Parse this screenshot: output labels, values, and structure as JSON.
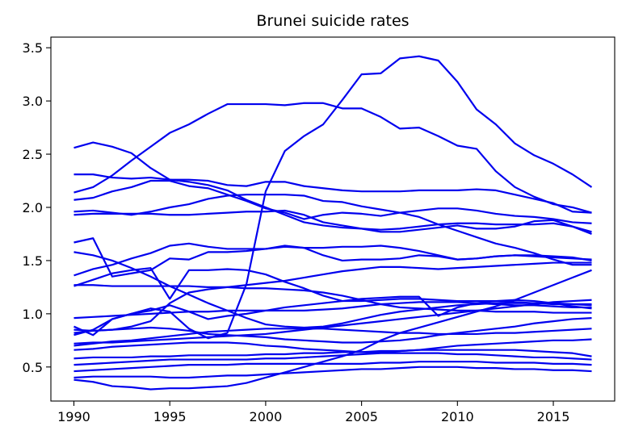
{
  "chart_data": {
    "type": "line",
    "title": "Brunei suicide rates",
    "xlabel": "",
    "ylabel": "",
    "xlim": [
      1988.8,
      2018.2
    ],
    "ylim": [
      0.18,
      3.6
    ],
    "xticks": [
      1990,
      1995,
      2000,
      2005,
      2010,
      2015
    ],
    "yticks": [
      0.5,
      1.0,
      1.5,
      2.0,
      2.5,
      3.0,
      3.5
    ],
    "grid": false,
    "line_color": "#0000ee",
    "x": [
      1990,
      1991,
      1992,
      1993,
      1994,
      1995,
      1996,
      1997,
      1998,
      1999,
      2000,
      2001,
      2002,
      2003,
      2004,
      2005,
      2006,
      2007,
      2008,
      2009,
      2010,
      2011,
      2012,
      2013,
      2014,
      2015,
      2016,
      2017
    ],
    "series": [
      {
        "values": [
          0.38,
          0.36,
          0.32,
          0.31,
          0.29,
          0.3,
          0.3,
          0.31,
          0.32,
          0.35,
          0.4,
          0.45,
          0.5,
          0.55,
          0.6,
          0.66,
          0.75,
          0.82,
          0.87,
          0.92,
          0.97,
          1.02,
          1.07,
          1.13,
          1.2,
          1.27,
          1.34,
          1.41
        ]
      },
      {
        "values": [
          0.4,
          0.41,
          0.41,
          0.41,
          0.41,
          0.4,
          0.4,
          0.41,
          0.42,
          0.42,
          0.43,
          0.44,
          0.45,
          0.46,
          0.47,
          0.48,
          0.48,
          0.49,
          0.5,
          0.5,
          0.5,
          0.49,
          0.49,
          0.48,
          0.48,
          0.47,
          0.47,
          0.46
        ]
      },
      {
        "values": [
          0.46,
          0.47,
          0.48,
          0.49,
          0.5,
          0.51,
          0.52,
          0.52,
          0.52,
          0.53,
          0.53,
          0.53,
          0.53,
          0.53,
          0.53,
          0.53,
          0.54,
          0.54,
          0.55,
          0.55,
          0.55,
          0.55,
          0.54,
          0.54,
          0.54,
          0.53,
          0.53,
          0.52
        ]
      },
      {
        "values": [
          0.52,
          0.53,
          0.54,
          0.55,
          0.56,
          0.57,
          0.57,
          0.57,
          0.57,
          0.57,
          0.58,
          0.58,
          0.59,
          0.6,
          0.61,
          0.62,
          0.63,
          0.63,
          0.63,
          0.63,
          0.62,
          0.62,
          0.61,
          0.6,
          0.59,
          0.59,
          0.58,
          0.57
        ]
      },
      {
        "values": [
          0.58,
          0.59,
          0.59,
          0.59,
          0.6,
          0.6,
          0.61,
          0.61,
          0.61,
          0.61,
          0.62,
          0.62,
          0.63,
          0.63,
          0.64,
          0.64,
          0.65,
          0.65,
          0.66,
          0.66,
          0.66,
          0.66,
          0.66,
          0.66,
          0.65,
          0.64,
          0.63,
          0.6
        ]
      },
      {
        "values": [
          0.66,
          0.67,
          0.69,
          0.7,
          0.71,
          0.72,
          0.73,
          0.73,
          0.73,
          0.72,
          0.7,
          0.69,
          0.67,
          0.66,
          0.65,
          0.64,
          0.64,
          0.65,
          0.66,
          0.68,
          0.7,
          0.71,
          0.72,
          0.73,
          0.74,
          0.75,
          0.75,
          0.76
        ]
      },
      {
        "values": [
          0.7,
          0.72,
          0.74,
          0.75,
          0.77,
          0.79,
          0.81,
          0.83,
          0.84,
          0.85,
          0.86,
          0.86,
          0.86,
          0.86,
          0.85,
          0.84,
          0.83,
          0.82,
          0.82,
          0.81,
          0.81,
          0.81,
          0.82,
          0.82,
          0.83,
          0.84,
          0.85,
          0.86
        ]
      },
      {
        "values": [
          0.72,
          0.73,
          0.73,
          0.74,
          0.75,
          0.76,
          0.77,
          0.78,
          0.79,
          0.8,
          0.81,
          0.83,
          0.85,
          0.87,
          0.89,
          0.91,
          0.93,
          0.95,
          0.97,
          0.99,
          1.01,
          1.03,
          1.05,
          1.07,
          1.09,
          1.11,
          1.12,
          1.13
        ]
      },
      {
        "values": [
          0.82,
          0.84,
          0.85,
          0.86,
          0.87,
          0.86,
          0.84,
          0.81,
          0.8,
          0.79,
          0.78,
          0.76,
          0.75,
          0.74,
          0.73,
          0.73,
          0.74,
          0.75,
          0.77,
          0.8,
          0.82,
          0.84,
          0.86,
          0.88,
          0.91,
          0.93,
          0.95,
          0.96
        ]
      },
      {
        "values": [
          0.88,
          0.8,
          0.95,
          1.0,
          1.03,
          1.08,
          1.02,
          0.95,
          0.98,
          1.0,
          1.03,
          1.06,
          1.08,
          1.1,
          1.12,
          1.14,
          1.15,
          1.16,
          1.16,
          0.98,
          1.06,
          1.1,
          1.12,
          1.13,
          1.12,
          1.1,
          1.07,
          1.05
        ]
      },
      {
        "values": [
          0.96,
          0.97,
          0.98,
          0.99,
          1.0,
          1.01,
          1.02,
          1.02,
          1.03,
          1.03,
          1.03,
          1.03,
          1.03,
          1.04,
          1.05,
          1.07,
          1.09,
          1.1,
          1.11,
          1.11,
          1.11,
          1.1,
          1.09,
          1.08,
          1.08,
          1.07,
          1.06,
          1.06
        ]
      },
      {
        "values": [
          1.27,
          1.27,
          1.26,
          1.26,
          1.26,
          1.26,
          1.26,
          1.25,
          1.25,
          1.24,
          1.24,
          1.23,
          1.22,
          1.2,
          1.17,
          1.13,
          1.09,
          1.06,
          1.05,
          1.04,
          1.03,
          1.03,
          1.02,
          1.02,
          1.02,
          1.01,
          1.01,
          1.01
        ]
      },
      {
        "values": [
          0.85,
          0.84,
          0.85,
          0.88,
          0.93,
          1.1,
          1.2,
          1.23,
          1.25,
          1.27,
          1.29,
          1.31,
          1.34,
          1.37,
          1.4,
          1.42,
          1.44,
          1.44,
          1.43,
          1.42,
          1.43,
          1.44,
          1.45,
          1.46,
          1.47,
          1.48,
          1.48,
          1.48
        ]
      },
      {
        "values": [
          1.26,
          1.32,
          1.38,
          1.41,
          1.43,
          1.14,
          1.41,
          1.41,
          1.42,
          1.41,
          1.37,
          1.3,
          1.24,
          1.17,
          1.12,
          1.12,
          1.13,
          1.14,
          1.14,
          1.13,
          1.12,
          1.12,
          1.12,
          1.11,
          1.1,
          1.1,
          1.09,
          1.08
        ]
      },
      {
        "values": [
          1.67,
          1.71,
          1.35,
          1.38,
          1.41,
          1.52,
          1.51,
          1.58,
          1.58,
          1.59,
          1.61,
          1.64,
          1.62,
          1.55,
          1.5,
          1.51,
          1.51,
          1.52,
          1.55,
          1.54,
          1.51,
          1.52,
          1.54,
          1.55,
          1.54,
          1.53,
          1.52,
          1.51
        ]
      },
      {
        "values": [
          1.58,
          1.55,
          1.5,
          1.43,
          1.35,
          1.26,
          1.18,
          1.1,
          1.03,
          0.96,
          0.9,
          0.88,
          0.87,
          0.88,
          0.91,
          0.95,
          0.99,
          1.02,
          1.04,
          1.06,
          1.08,
          1.09,
          1.1,
          1.1,
          1.1,
          1.09,
          1.09,
          1.09
        ]
      },
      {
        "values": [
          1.36,
          1.42,
          1.46,
          1.52,
          1.57,
          1.64,
          1.66,
          1.63,
          1.61,
          1.61,
          1.61,
          1.63,
          1.62,
          1.62,
          1.63,
          1.63,
          1.64,
          1.62,
          1.59,
          1.55,
          1.51,
          1.52,
          1.54,
          1.55,
          1.55,
          1.54,
          1.53,
          1.5
        ]
      },
      {
        "values": [
          1.96,
          1.97,
          1.95,
          1.93,
          1.96,
          2.0,
          2.03,
          2.08,
          2.11,
          2.12,
          2.12,
          2.12,
          2.11,
          2.06,
          2.05,
          2.01,
          1.98,
          1.95,
          1.91,
          1.84,
          1.78,
          1.72,
          1.66,
          1.62,
          1.57,
          1.51,
          1.46,
          1.46
        ]
      },
      {
        "values": [
          1.93,
          1.94,
          1.94,
          1.94,
          1.94,
          1.93,
          1.93,
          1.94,
          1.95,
          1.96,
          1.96,
          1.97,
          1.93,
          1.86,
          1.83,
          1.8,
          1.79,
          1.8,
          1.82,
          1.84,
          1.85,
          1.85,
          1.84,
          1.84,
          1.84,
          1.85,
          1.82,
          1.77
        ]
      },
      {
        "values": [
          2.07,
          2.09,
          2.15,
          2.19,
          2.25,
          2.25,
          2.2,
          2.18,
          2.12,
          2.06,
          1.99,
          1.95,
          1.89,
          1.93,
          1.95,
          1.94,
          1.92,
          1.95,
          1.97,
          1.99,
          1.99,
          1.97,
          1.94,
          1.92,
          1.91,
          1.89,
          1.86,
          1.85
        ]
      },
      {
        "values": [
          2.31,
          2.31,
          2.28,
          2.27,
          2.28,
          2.26,
          2.24,
          2.21,
          2.16,
          2.07,
          2.0,
          1.93,
          1.86,
          1.83,
          1.81,
          1.8,
          1.77,
          1.77,
          1.79,
          1.81,
          1.83,
          1.8,
          1.8,
          1.82,
          1.87,
          1.88,
          1.82,
          1.75
        ]
      },
      {
        "values": [
          2.14,
          2.19,
          2.3,
          2.44,
          2.57,
          2.7,
          2.78,
          2.88,
          2.97,
          2.97,
          2.97,
          2.96,
          2.98,
          2.98,
          2.93,
          2.93,
          2.85,
          2.74,
          2.75,
          2.67,
          2.58,
          2.55,
          2.34,
          2.19,
          2.1,
          2.03,
          2.0,
          1.95
        ]
      },
      {
        "values": [
          2.56,
          2.61,
          2.57,
          2.51,
          2.37,
          2.26,
          2.26,
          2.25,
          2.21,
          2.2,
          2.24,
          2.24,
          2.2,
          2.18,
          2.16,
          2.15,
          2.15,
          2.15,
          2.16,
          2.16,
          2.16,
          2.17,
          2.16,
          2.12,
          2.08,
          2.04,
          1.96,
          1.95
        ]
      },
      {
        "values": [
          0.8,
          0.85,
          0.95,
          1.0,
          1.05,
          1.02,
          0.86,
          0.77,
          0.82,
          1.28,
          2.15,
          2.53,
          2.67,
          2.78,
          3.01,
          3.25,
          3.26,
          3.4,
          3.42,
          3.38,
          3.18,
          2.92,
          2.78,
          2.6,
          2.49,
          2.41,
          2.31,
          2.19
        ]
      }
    ]
  }
}
